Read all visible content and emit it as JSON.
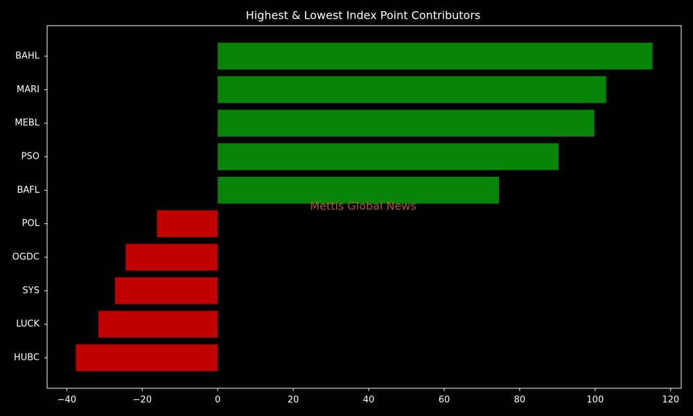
{
  "chart_data": {
    "type": "barh",
    "title": "Highest & Lowest Index Point Contributors",
    "categories": [
      "BAHL",
      "MARI",
      "MEBL",
      "PSO",
      "BAFL",
      "POL",
      "OGDC",
      "SYS",
      "LUCK",
      "HUBC"
    ],
    "values": [
      115.2,
      102.9,
      99.8,
      90.3,
      74.5,
      -16.1,
      -24.4,
      -27.2,
      -31.6,
      -37.6
    ],
    "colors": [
      "#088408",
      "#088408",
      "#088408",
      "#088408",
      "#088408",
      "#c00000",
      "#c00000",
      "#c00000",
      "#c00000",
      "#c00000"
    ],
    "xlim": [
      -45.2,
      122.8
    ],
    "xticks": [
      {
        "value": -40,
        "label": "−40"
      },
      {
        "value": -20,
        "label": "−20"
      },
      0,
      20,
      40,
      60,
      80,
      100,
      120
    ],
    "grid": false,
    "watermark": "Mettis Global News"
  }
}
